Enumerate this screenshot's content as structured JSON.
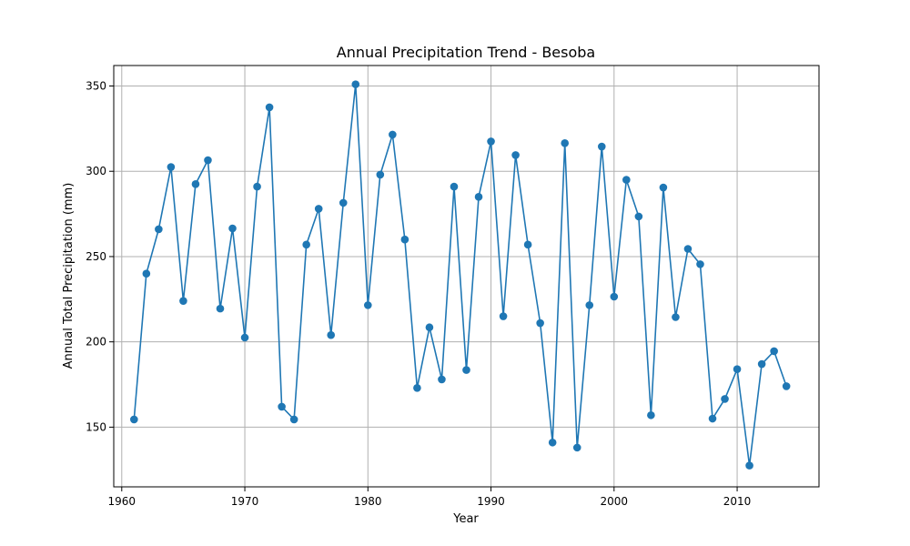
{
  "chart_data": {
    "type": "line",
    "title": "Annual Precipitation Trend - Besoba",
    "xlabel": "Year",
    "ylabel": "Annual Total Precipitation (mm)",
    "xlim": [
      1959.35,
      2016.65
    ],
    "ylim": [
      115,
      362
    ],
    "xticks": [
      1960,
      1970,
      1980,
      1990,
      2000,
      2010
    ],
    "yticks": [
      150,
      200,
      250,
      300,
      350
    ],
    "grid": true,
    "marker": "circle",
    "series": [
      {
        "color": "#1f77b4",
        "x": [
          1961,
          1962,
          1963,
          1964,
          1965,
          1966,
          1967,
          1968,
          1969,
          1970,
          1971,
          1972,
          1973,
          1974,
          1975,
          1976,
          1977,
          1978,
          1979,
          1980,
          1981,
          1982,
          1983,
          1984,
          1985,
          1986,
          1987,
          1988,
          1989,
          1990,
          1991,
          1992,
          1993,
          1994,
          1995,
          1996,
          1997,
          1998,
          1999,
          2000,
          2001,
          2002,
          2003,
          2004,
          2005,
          2006,
          2007,
          2008,
          2009,
          2010,
          2011,
          2012,
          2013,
          2014
        ],
        "y": [
          154.5,
          240,
          266,
          302.5,
          224,
          292.5,
          306.5,
          219.5,
          266.5,
          202.5,
          291,
          337.5,
          162,
          154.5,
          257,
          278,
          204,
          281.5,
          351,
          221.5,
          298,
          321.5,
          260,
          173,
          208.5,
          178,
          291,
          183.5,
          285,
          317.5,
          215,
          309.5,
          257,
          211,
          141,
          316.5,
          138,
          221.5,
          314.5,
          226.5,
          295,
          273.5,
          157,
          290.5,
          214.5,
          254.5,
          245.5,
          155,
          166.5,
          184,
          127.5,
          187,
          194.5,
          174
        ]
      }
    ]
  }
}
